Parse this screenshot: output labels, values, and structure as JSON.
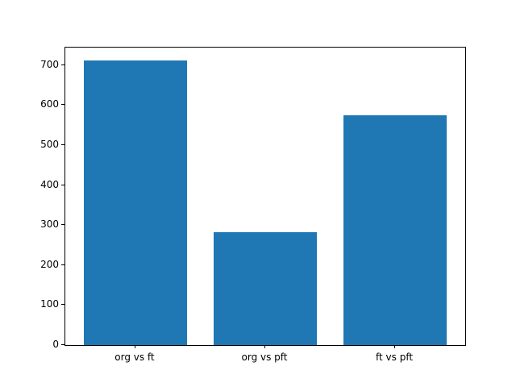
{
  "chart_data": {
    "type": "bar",
    "categories": [
      "org vs ft",
      "org vs pft",
      "ft vs pft"
    ],
    "values": [
      712,
      282,
      575
    ],
    "title": "",
    "xlabel": "",
    "ylabel": "",
    "ylim": [
      0,
      744
    ],
    "yticks": [
      0,
      100,
      200,
      300,
      400,
      500,
      600,
      700
    ],
    "bar_color": "#1f77b4",
    "background_color": "#ffffff",
    "axis_color": "#000000",
    "grid": false,
    "legend": "none"
  }
}
